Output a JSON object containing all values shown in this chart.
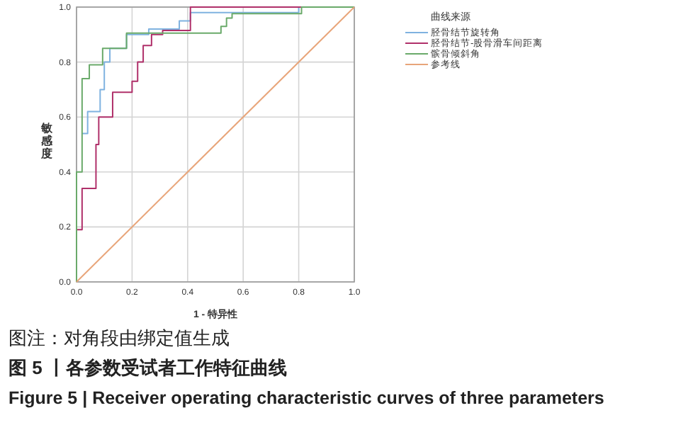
{
  "chart_data": {
    "type": "line",
    "xlabel": "1 - 特异性",
    "ylabel": "敏感度",
    "legend_title": "曲线来源",
    "xlim": [
      0,
      1
    ],
    "ylim": [
      0,
      1
    ],
    "xticks": [
      {
        "value": 0,
        "label": "0.0"
      },
      {
        "value": 0.2,
        "label": "0.2"
      },
      {
        "value": 0.4,
        "label": "0.4"
      },
      {
        "value": 0.6,
        "label": "0.6"
      },
      {
        "value": 0.8,
        "label": "0.8"
      },
      {
        "value": 1,
        "label": "1.0"
      }
    ],
    "yticks": [
      {
        "value": 0,
        "label": "0.0"
      },
      {
        "value": 0.2,
        "label": "0.2"
      },
      {
        "value": 0.4,
        "label": "0.4"
      },
      {
        "value": 0.6,
        "label": "0.6"
      },
      {
        "value": 0.8,
        "label": "0.8"
      },
      {
        "value": 1,
        "label": "1.0"
      }
    ],
    "grid": true,
    "legend": "right",
    "series": [
      {
        "name": "胫骨结节旋转角",
        "color": "#7fb2e0",
        "x": [
          0.02,
          0.04,
          0.04,
          0.085,
          0.085,
          0.1,
          0.1,
          0.12,
          0.12,
          0.18,
          0.18,
          0.26,
          0.26,
          0.37,
          0.37,
          0.41,
          0.41,
          0.8,
          0.8,
          1
        ],
        "values": [
          0.54,
          0.54,
          0.62,
          0.62,
          0.7,
          0.7,
          0.8,
          0.8,
          0.85,
          0.85,
          0.9,
          0.9,
          0.92,
          0.92,
          0.95,
          0.95,
          0.98,
          0.98,
          1,
          1
        ]
      },
      {
        "name": "胫骨结节-股骨滑车间距离",
        "color": "#b0306a",
        "x": [
          0,
          0,
          0.01,
          0.01,
          0.02,
          0.02,
          0.07,
          0.07,
          0.08,
          0.08,
          0.13,
          0.13,
          0.2,
          0.2,
          0.22,
          0.22,
          0.24,
          0.24,
          0.27,
          0.27,
          0.31,
          0.31,
          0.41,
          0.41,
          1
        ],
        "values": [
          0,
          0.19,
          0.19,
          0.19,
          0.19,
          0.34,
          0.34,
          0.5,
          0.5,
          0.6,
          0.6,
          0.69,
          0.69,
          0.73,
          0.73,
          0.8,
          0.8,
          0.86,
          0.86,
          0.9,
          0.9,
          0.915,
          0.915,
          1,
          1
        ]
      },
      {
        "name": "髌骨倾斜角",
        "color": "#6aaa6a",
        "x": [
          0,
          0,
          0.02,
          0.02,
          0.046,
          0.046,
          0.094,
          0.094,
          0.18,
          0.18,
          0.52,
          0.52,
          0.54,
          0.54,
          0.56,
          0.56,
          0.81,
          0.81,
          1
        ],
        "values": [
          0,
          0.4,
          0.4,
          0.74,
          0.74,
          0.79,
          0.79,
          0.85,
          0.85,
          0.905,
          0.905,
          0.93,
          0.93,
          0.96,
          0.96,
          0.976,
          0.976,
          1,
          1
        ]
      },
      {
        "name": "参考线",
        "color": "#e8a57a",
        "x": [
          0,
          1
        ],
        "values": [
          0,
          1
        ]
      }
    ],
    "annotations": [
      "图注：对角段由绑定值生成",
      "图 5 丨各参数受试者工作特征曲线",
      "Figure 5  |  Receiver operating characteristic curves of three parameters"
    ]
  }
}
